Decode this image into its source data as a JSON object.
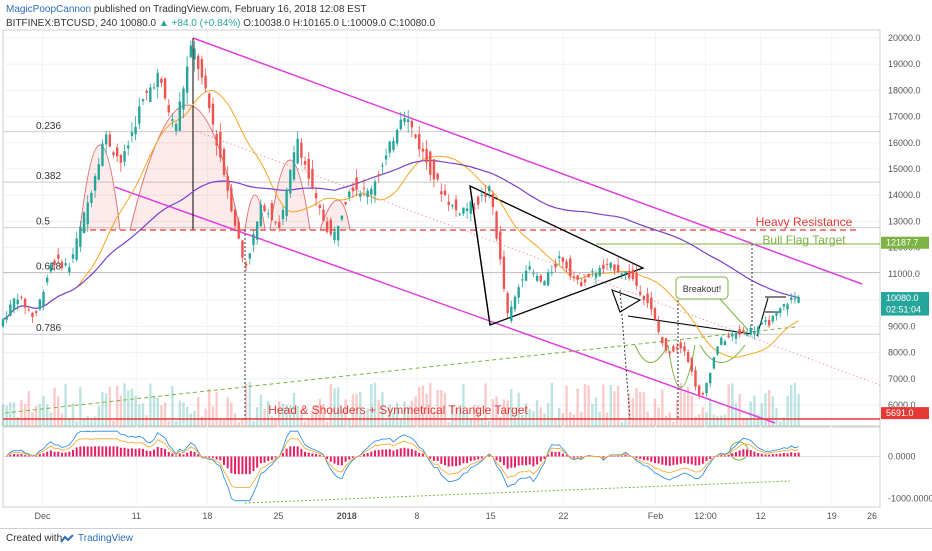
{
  "header": {
    "author": "MagicPoopCannon",
    "published": "published on TradingView.com, February 16, 2018 12:08 EST",
    "symbol": "BITFINEX:BTCUSD, 240",
    "last": "10080.0",
    "change": "+84.0 (+0.84%)",
    "ohlc": "O:10038.0 H:10165.0 L:10009.0 C:10080.0"
  },
  "footer": {
    "created_with": "Created with",
    "brand": "TradingView"
  },
  "colors": {
    "up": "#26a69a",
    "down": "#ef5350",
    "channel": "#e040e0",
    "resistance": "#e53935",
    "flag": "#7cb342",
    "ma_fast": "#f5a623",
    "ma_slow": "#7b3fc8",
    "macd": "#e91e63"
  },
  "chart_data": {
    "type": "candlestick",
    "price_axis": {
      "ylim": [
        5200,
        20300
      ],
      "ticks": [
        "20000.0",
        "19000.0",
        "18000.0",
        "17000.0",
        "16000.0",
        "15000.0",
        "14000.0",
        "13000.0",
        "12000.0",
        "11000.0",
        "10000.0",
        "9000.0",
        "8000.0",
        "7000.0",
        "6000.0"
      ],
      "tick_values": [
        20000,
        19000,
        18000,
        17000,
        16000,
        15000,
        14000,
        13000,
        12000,
        11000,
        10000,
        9000,
        8000,
        7000,
        6000
      ],
      "badges": [
        {
          "label": "12187.7",
          "value": 12187.7,
          "color": "#7cb342"
        },
        {
          "label": "10080.0",
          "value": 10080,
          "color": "#26a69a"
        },
        {
          "label": "02:51:04",
          "value": 9640,
          "color": "#26a69a"
        },
        {
          "label": "5691.0",
          "value": 5691,
          "color": "#e53935"
        }
      ]
    },
    "fib_levels": [
      {
        "label": "0.236",
        "value": 16420
      },
      {
        "label": "0.382",
        "value": 14500
      },
      {
        "label": "0.5",
        "value": 12760
      },
      {
        "label": "0.618",
        "value": 11050
      },
      {
        "label": "0.786",
        "value": 8700
      }
    ],
    "oscillator": {
      "ticks": [
        "0.0000",
        "-1000.0000"
      ],
      "tick_values": [
        0,
        -1000
      ],
      "ylim": [
        -1200,
        700
      ]
    },
    "time_axis": {
      "x_range": [
        0,
        100
      ],
      "labels": [
        "Dec",
        "11",
        "18",
        "25",
        "2018",
        "8",
        "15",
        "22",
        "Feb",
        "12:00",
        "12",
        "19",
        "26"
      ],
      "label_x": [
        4.5,
        15.2,
        23.3,
        31.4,
        39.2,
        47.2,
        55.6,
        63.9,
        74.4,
        80.1,
        86.4,
        94.5,
        102.8
      ]
    },
    "annotations": [
      {
        "text": "Heavy Resistance",
        "color": "#e53935"
      },
      {
        "text": "Bull Flag Target",
        "color": "#7cb342"
      },
      {
        "text": "Breakout!",
        "color": "#333333"
      },
      {
        "text": "Head & Shoulders + Symmetrical Triangle Target",
        "color": "#e53935"
      }
    ],
    "price_path": [
      [
        0,
        9000
      ],
      [
        2,
        10200
      ],
      [
        4,
        9300
      ],
      [
        6,
        11500
      ],
      [
        8,
        11300
      ],
      [
        10,
        13600
      ],
      [
        12,
        16300
      ],
      [
        14,
        15200
      ],
      [
        16,
        17300
      ],
      [
        18,
        18600
      ],
      [
        20,
        16500
      ],
      [
        22,
        19800
      ],
      [
        24,
        17200
      ],
      [
        26,
        14300
      ],
      [
        28,
        11200
      ],
      [
        30,
        13700
      ],
      [
        32,
        12800
      ],
      [
        34,
        16200
      ],
      [
        36,
        13800
      ],
      [
        38,
        12300
      ],
      [
        40,
        14400
      ],
      [
        42,
        14100
      ],
      [
        44,
        15300
      ],
      [
        46,
        17300
      ],
      [
        48,
        15800
      ],
      [
        50,
        14400
      ],
      [
        52,
        13400
      ],
      [
        54,
        13600
      ],
      [
        56,
        14200
      ],
      [
        58,
        9300
      ],
      [
        60,
        11300
      ],
      [
        62,
        10600
      ],
      [
        64,
        11700
      ],
      [
        66,
        10600
      ],
      [
        68,
        11100
      ],
      [
        70,
        11300
      ],
      [
        72,
        10900
      ],
      [
        74,
        9900
      ],
      [
        76,
        8000
      ],
      [
        78,
        8300
      ],
      [
        80,
        6100
      ],
      [
        82,
        8400
      ],
      [
        84,
        8700
      ],
      [
        86,
        8900
      ],
      [
        88,
        9200
      ],
      [
        90,
        10000
      ],
      [
        91,
        10080
      ]
    ]
  }
}
